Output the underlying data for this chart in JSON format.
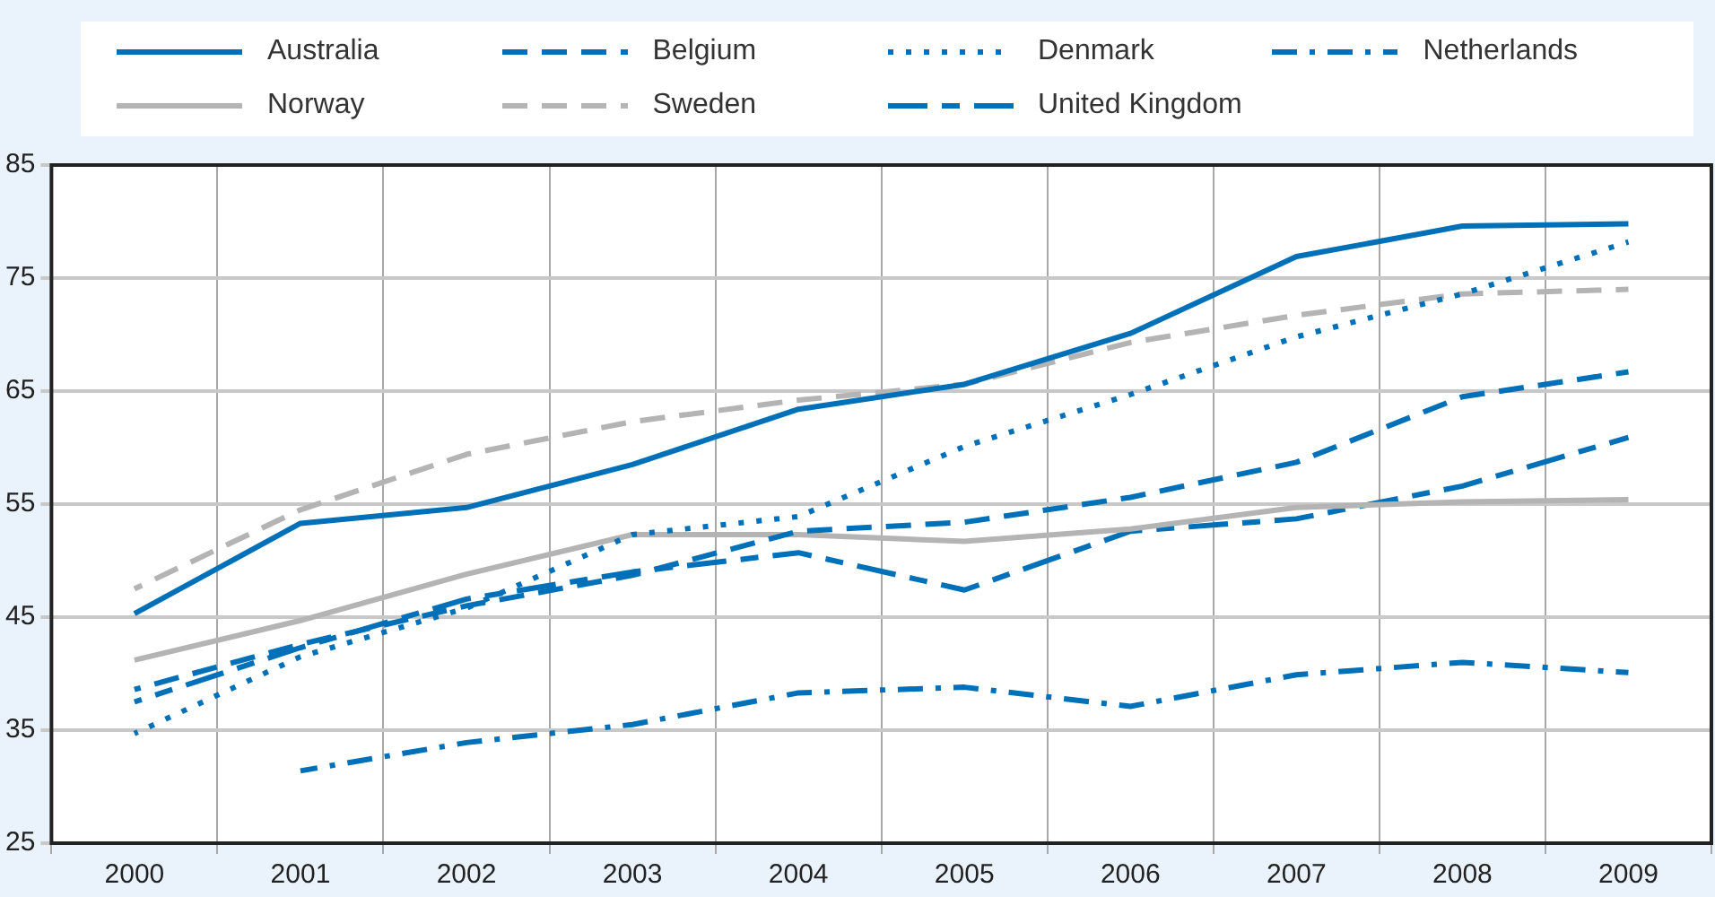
{
  "chart_data": {
    "type": "line",
    "categories": [
      "2000",
      "2001",
      "2002",
      "2003",
      "2004",
      "2005",
      "2006",
      "2007",
      "2008",
      "2009"
    ],
    "series": [
      {
        "name": "Australia",
        "color": "#0070b8",
        "line_style": "solid",
        "values": [
          45.3,
          53.3,
          54.7,
          58.5,
          63.4,
          65.6,
          70.1,
          76.9,
          79.6,
          79.8
        ]
      },
      {
        "name": "Belgium",
        "color": "#0070b8",
        "line_style": "dashed",
        "values": [
          38.6,
          42.6,
          46,
          48.7,
          52.6,
          53.4,
          55.6,
          58.7,
          64.5,
          66.7
        ]
      },
      {
        "name": "Denmark",
        "color": "#0070b8",
        "line_style": "dotted",
        "values": [
          34.7,
          41.5,
          45.8,
          52.3,
          53.9,
          60.1,
          64.7,
          69.8,
          73.6,
          78.2
        ]
      },
      {
        "name": "Netherlands",
        "color": "#0070b8",
        "line_style": "dashdot",
        "values": [
          null,
          31.4,
          33.9,
          35.5,
          38.3,
          38.8,
          37.1,
          39.9,
          41,
          40.1
        ]
      },
      {
        "name": "Norway",
        "color": "#b4b4b4",
        "line_style": "solid",
        "values": [
          41.2,
          44.7,
          48.8,
          52.3,
          52.3,
          51.7,
          52.8,
          54.7,
          55.2,
          55.4
        ]
      },
      {
        "name": "Sweden",
        "color": "#b4b4b4",
        "line_style": "dashed",
        "values": [
          47.5,
          54.5,
          59.4,
          62.3,
          64.2,
          65.6,
          69.3,
          71.7,
          73.6,
          74
        ]
      },
      {
        "name": "United Kingdom",
        "color": "#0070b8",
        "line_style": "longdashdot",
        "values": [
          37.5,
          42.3,
          46.6,
          49,
          50.7,
          47.4,
          52.6,
          53.7,
          56.6,
          60.9
        ]
      }
    ],
    "ylim": [
      25,
      85
    ],
    "yticks": [
      25,
      35,
      45,
      55,
      65,
      75,
      85
    ],
    "grid": true,
    "legend": "top",
    "marker": "none"
  }
}
